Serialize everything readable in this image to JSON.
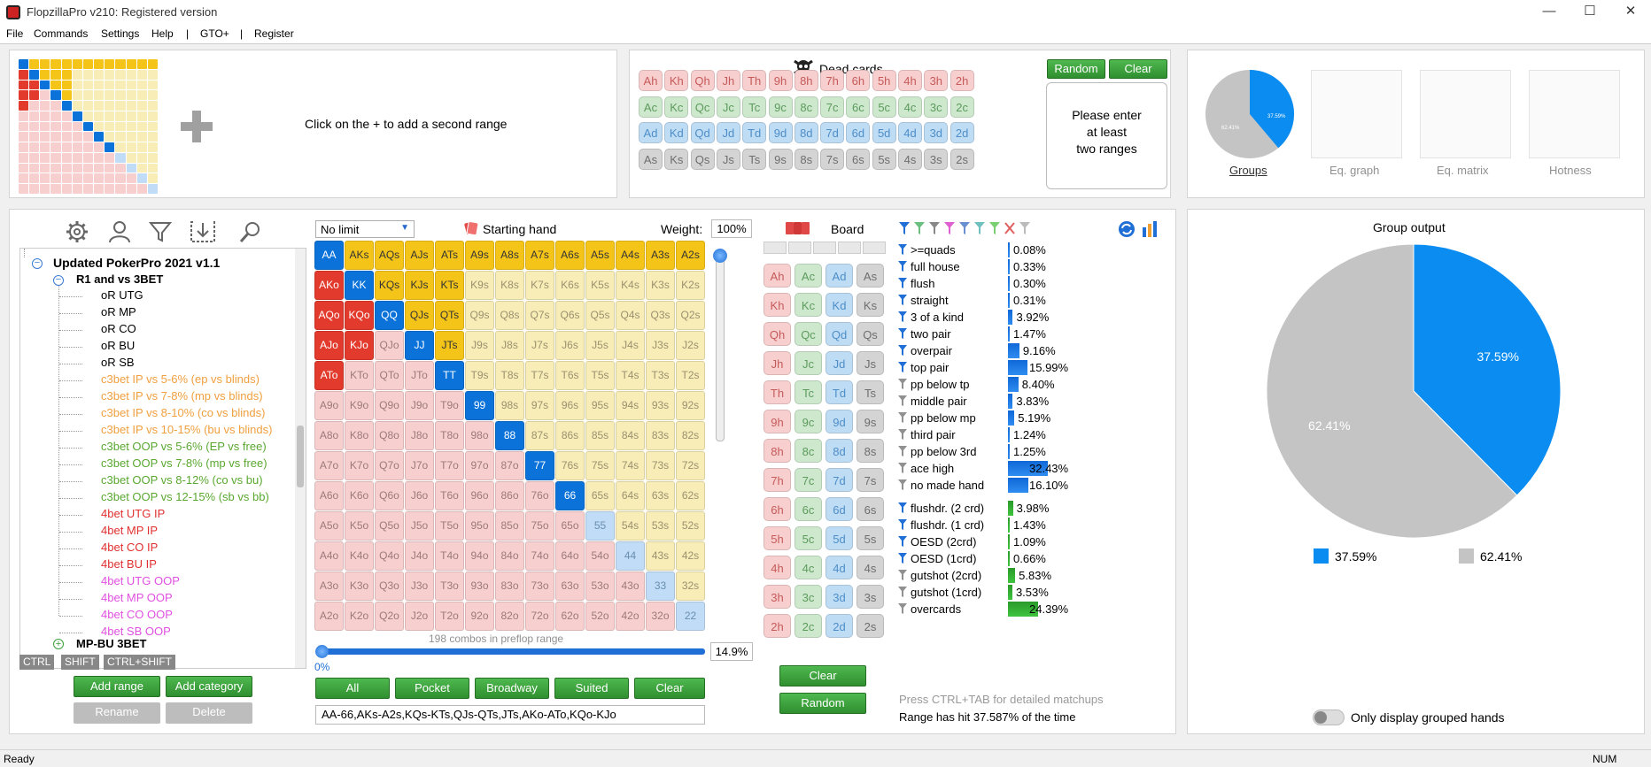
{
  "window": {
    "title": "FlopzillaPro v210: Registered version",
    "minimize": "—",
    "maximize": "☐",
    "close": "✕"
  },
  "menu": [
    "File",
    "Commands",
    "Settings",
    "Help",
    "|",
    "GTO+",
    "|",
    "Register"
  ],
  "range_area": {
    "add_second_range": "Click on the + to add a second range"
  },
  "dead_cards": {
    "title": "Dead cards",
    "random_label": "Random",
    "clear_label": "Clear",
    "rows": [
      [
        "Ah",
        "Kh",
        "Qh",
        "Jh",
        "Th",
        "9h",
        "8h",
        "7h",
        "6h",
        "5h",
        "4h",
        "3h",
        "2h"
      ],
      [
        "Ac",
        "Kc",
        "Qc",
        "Jc",
        "Tc",
        "9c",
        "8c",
        "7c",
        "6c",
        "5c",
        "4c",
        "3c",
        "2c"
      ],
      [
        "Ad",
        "Kd",
        "Qd",
        "Jd",
        "Td",
        "9d",
        "8d",
        "7d",
        "6d",
        "5d",
        "4d",
        "3d",
        "2d"
      ],
      [
        "As",
        "Ks",
        "Qs",
        "Js",
        "Ts",
        "9s",
        "8s",
        "7s",
        "6s",
        "5s",
        "4s",
        "3s",
        "2s"
      ]
    ],
    "message_line1": "Please enter",
    "message_line2": "at least",
    "message_line3": "two ranges"
  },
  "thumbs": {
    "groups": "Groups",
    "eq_graph": "Eq. graph",
    "eq_matrix": "Eq. matrix",
    "hotness": "Hotness",
    "groups_pct_a": "37.59%",
    "groups_pct_b": "62.41%"
  },
  "tree": {
    "root": "Updated PokerPro 2021 v1.1",
    "category1": "R1 and vs 3BET",
    "items": [
      {
        "label": "oR UTG",
        "color": "#000000"
      },
      {
        "label": "oR MP",
        "color": "#000000"
      },
      {
        "label": "oR CO",
        "color": "#000000"
      },
      {
        "label": "oR BU",
        "color": "#000000"
      },
      {
        "label": "oR SB",
        "color": "#000000"
      },
      {
        "label": "c3bet IP vs 5-6% (ep vs blinds)",
        "color": "#f0a040"
      },
      {
        "label": "c3bet IP vs 7-8% (mp vs blinds)",
        "color": "#f0a040"
      },
      {
        "label": "c3bet IP vs 8-10% (co vs blinds)",
        "color": "#f0a040"
      },
      {
        "label": "c3bet IP vs 10-15% (bu vs blinds)",
        "color": "#f0a040"
      },
      {
        "label": "c3bet OOP vs 5-6% (EP vs free)",
        "color": "#5aa830"
      },
      {
        "label": "c3bet OOP vs 7-8% (mp vs free)",
        "color": "#5aa830"
      },
      {
        "label": "c3bet OOP vs 8-12% (co vs bu)",
        "color": "#5aa830"
      },
      {
        "label": "c3bet OOP vs 12-15% (sb vs bb)",
        "color": "#5aa830"
      },
      {
        "label": "4bet UTG IP",
        "color": "#e03030"
      },
      {
        "label": "4bet MP IP",
        "color": "#e03030"
      },
      {
        "label": "4bet CO IP",
        "color": "#e03030"
      },
      {
        "label": "4bet BU IP",
        "color": "#e03030"
      },
      {
        "label": "4bet UTG OOP",
        "color": "#e050e0"
      },
      {
        "label": "4bet MP OOP",
        "color": "#e050e0"
      },
      {
        "label": "4bet CO OOP",
        "color": "#e050e0"
      },
      {
        "label": "4bet SB OOP",
        "color": "#e050e0"
      }
    ],
    "category2": "MP-BU 3BET",
    "modifiers": [
      "CTRL",
      "SHIFT",
      "CTRL+SHIFT"
    ],
    "add_range": "Add range",
    "add_category": "Add category",
    "rename": "Rename",
    "delete": "Delete"
  },
  "hand_matrix": {
    "limit": "No limit",
    "starting_hand": "Starting hand",
    "weight_label": "Weight:",
    "weight_value": "100%",
    "combos_text": "198 combos in preflop range",
    "slider_min": "0%",
    "pct": "14.9%",
    "buttons": [
      "All",
      "Pocket",
      "Broadway",
      "Suited",
      "Clear"
    ],
    "range_text": "AA-66,AKs-A2s,KQs-KTs,QJs-QTs,JTs,AKo-ATo,KQo-KJo",
    "cells": [
      [
        "AA",
        "AKs",
        "AQs",
        "AJs",
        "ATs",
        "A9s",
        "A8s",
        "A7s",
        "A6s",
        "A5s",
        "A4s",
        "A3s",
        "A2s"
      ],
      [
        "AKo",
        "KK",
        "KQs",
        "KJs",
        "KTs",
        "K9s",
        "K8s",
        "K7s",
        "K6s",
        "K5s",
        "K4s",
        "K3s",
        "K2s"
      ],
      [
        "AQo",
        "KQo",
        "QQ",
        "QJs",
        "QTs",
        "Q9s",
        "Q8s",
        "Q7s",
        "Q6s",
        "Q5s",
        "Q4s",
        "Q3s",
        "Q2s"
      ],
      [
        "AJo",
        "KJo",
        "QJo",
        "JJ",
        "JTs",
        "J9s",
        "J8s",
        "J7s",
        "J6s",
        "J5s",
        "J4s",
        "J3s",
        "J2s"
      ],
      [
        "ATo",
        "KTo",
        "QTo",
        "JTo",
        "TT",
        "T9s",
        "T8s",
        "T7s",
        "T6s",
        "T5s",
        "T4s",
        "T3s",
        "T2s"
      ],
      [
        "A9o",
        "K9o",
        "Q9o",
        "J9o",
        "T9o",
        "99",
        "98s",
        "97s",
        "96s",
        "95s",
        "94s",
        "93s",
        "92s"
      ],
      [
        "A8o",
        "K8o",
        "Q8o",
        "J8o",
        "T8o",
        "98o",
        "88",
        "87s",
        "86s",
        "85s",
        "84s",
        "83s",
        "82s"
      ],
      [
        "A7o",
        "K7o",
        "Q7o",
        "J7o",
        "T7o",
        "97o",
        "87o",
        "77",
        "76s",
        "75s",
        "74s",
        "73s",
        "72s"
      ],
      [
        "A6o",
        "K6o",
        "Q6o",
        "J6o",
        "T6o",
        "96o",
        "86o",
        "76o",
        "66",
        "65s",
        "64s",
        "63s",
        "62s"
      ],
      [
        "A5o",
        "K5o",
        "Q5o",
        "J5o",
        "T5o",
        "95o",
        "85o",
        "75o",
        "65o",
        "55",
        "54s",
        "53s",
        "52s"
      ],
      [
        "A4o",
        "K4o",
        "Q4o",
        "J4o",
        "T4o",
        "94o",
        "84o",
        "74o",
        "64o",
        "54o",
        "44",
        "43s",
        "42s"
      ],
      [
        "A3o",
        "K3o",
        "Q3o",
        "J3o",
        "T3o",
        "93o",
        "83o",
        "73o",
        "63o",
        "53o",
        "43o",
        "33",
        "32s"
      ],
      [
        "A2o",
        "K2o",
        "Q2o",
        "J2o",
        "T2o",
        "92o",
        "82o",
        "72o",
        "62o",
        "52o",
        "42o",
        "32o",
        "22"
      ]
    ]
  },
  "board": {
    "title": "Board",
    "clear": "Clear",
    "random": "Random",
    "rows": [
      [
        "Ah",
        "Ac",
        "Ad",
        "As"
      ],
      [
        "Kh",
        "Kc",
        "Kd",
        "Ks"
      ],
      [
        "Qh",
        "Qc",
        "Qd",
        "Qs"
      ],
      [
        "Jh",
        "Jc",
        "Jd",
        "Js"
      ],
      [
        "Th",
        "Tc",
        "Td",
        "Ts"
      ],
      [
        "9h",
        "9c",
        "9d",
        "9s"
      ],
      [
        "8h",
        "8c",
        "8d",
        "8s"
      ],
      [
        "7h",
        "7c",
        "7d",
        "7s"
      ],
      [
        "6h",
        "6c",
        "6d",
        "6s"
      ],
      [
        "5h",
        "5c",
        "5d",
        "5s"
      ],
      [
        "4h",
        "4c",
        "4d",
        "4s"
      ],
      [
        "3h",
        "3c",
        "3d",
        "3s"
      ],
      [
        "2h",
        "2c",
        "2d",
        "2s"
      ]
    ]
  },
  "stats": {
    "made_hands": [
      {
        "label": ">=quads",
        "value": "0.08%",
        "pct": 0.08,
        "active": true
      },
      {
        "label": "full house",
        "value": "0.33%",
        "pct": 0.33,
        "active": true
      },
      {
        "label": "flush",
        "value": "0.30%",
        "pct": 0.3,
        "active": true
      },
      {
        "label": "straight",
        "value": "0.31%",
        "pct": 0.31,
        "active": true
      },
      {
        "label": "3 of a kind",
        "value": "3.92%",
        "pct": 3.92,
        "active": true
      },
      {
        "label": "two pair",
        "value": "1.47%",
        "pct": 1.47,
        "active": true
      },
      {
        "label": "overpair",
        "value": "9.16%",
        "pct": 9.16,
        "active": true
      },
      {
        "label": "top pair",
        "value": "15.99%",
        "pct": 15.99,
        "active": true
      },
      {
        "label": "pp below tp",
        "value": "8.40%",
        "pct": 8.4,
        "active": false
      },
      {
        "label": "middle pair",
        "value": "3.83%",
        "pct": 3.83,
        "active": false
      },
      {
        "label": "pp below mp",
        "value": "5.19%",
        "pct": 5.19,
        "active": false
      },
      {
        "label": "third pair",
        "value": "1.24%",
        "pct": 1.24,
        "active": false
      },
      {
        "label": "pp below 3rd",
        "value": "1.25%",
        "pct": 1.25,
        "active": false
      },
      {
        "label": "ace high",
        "value": "32.43%",
        "pct": 32.43,
        "active": false
      },
      {
        "label": "no made hand",
        "value": "16.10%",
        "pct": 16.1,
        "active": false
      }
    ],
    "draws": [
      {
        "label": "flushdr. (2 crd)",
        "value": "3.98%",
        "pct": 3.98,
        "active": true
      },
      {
        "label": "flushdr. (1 crd)",
        "value": "1.43%",
        "pct": 1.43,
        "active": true
      },
      {
        "label": "OESD (2crd)",
        "value": "1.09%",
        "pct": 1.09,
        "active": true
      },
      {
        "label": "OESD (1crd)",
        "value": "0.66%",
        "pct": 0.66,
        "active": true
      },
      {
        "label": "gutshot (2crd)",
        "value": "5.83%",
        "pct": 5.83,
        "active": false
      },
      {
        "label": "gutshot (1crd)",
        "value": "3.53%",
        "pct": 3.53,
        "active": false
      },
      {
        "label": "overcards",
        "value": "24.39%",
        "pct": 24.39,
        "active": false
      }
    ],
    "hint": "Press CTRL+TAB for detailed matchups",
    "range_hit": "Range has hit 37.587% of the time"
  },
  "group_output": {
    "title": "Group output",
    "toggle_label": "Only display grouped hands"
  },
  "chart_data": {
    "type": "pie",
    "title": "Group output",
    "labels": [
      "37.59%",
      "62.41%"
    ],
    "values": [
      37.59,
      62.41
    ],
    "colors": [
      "#0a8cf0",
      "#c4c4c4"
    ]
  },
  "status": {
    "left": "Ready",
    "right": "NUM"
  }
}
